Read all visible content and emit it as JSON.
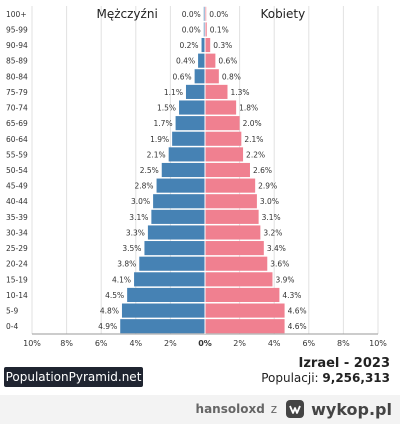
{
  "chart_data": {
    "type": "bar",
    "orientation": "horizontal-population-pyramid",
    "categories": [
      "100+",
      "95-99",
      "90-94",
      "85-89",
      "80-84",
      "75-79",
      "70-74",
      "65-69",
      "60-64",
      "55-59",
      "50-54",
      "45-49",
      "40-44",
      "35-39",
      "30-34",
      "25-29",
      "20-24",
      "15-19",
      "10-14",
      "5-9",
      "0-4"
    ],
    "series": [
      {
        "name": "Mężczyźni",
        "side": "left",
        "color": "#4682b4",
        "values": [
          0.0,
          0.0,
          0.2,
          0.4,
          0.6,
          1.1,
          1.5,
          1.7,
          1.9,
          2.1,
          2.5,
          2.8,
          3.0,
          3.1,
          3.3,
          3.5,
          3.8,
          4.1,
          4.5,
          4.8,
          4.9
        ],
        "labels": [
          "0.0%",
          "0.0%",
          "0.2%",
          "0.4%",
          "0.6%",
          "1.1%",
          "1.5%",
          "1.7%",
          "1.9%",
          "2.1%",
          "2.5%",
          "2.8%",
          "3.0%",
          "3.1%",
          "3.3%",
          "3.5%",
          "3.8%",
          "4.1%",
          "4.5%",
          "4.8%",
          "4.9%"
        ]
      },
      {
        "name": "Kobiety",
        "side": "right",
        "color": "#f08090",
        "values": [
          0.0,
          0.1,
          0.3,
          0.6,
          0.8,
          1.3,
          1.8,
          2.0,
          2.1,
          2.2,
          2.6,
          2.9,
          3.0,
          3.1,
          3.2,
          3.4,
          3.6,
          3.9,
          4.3,
          4.6,
          4.6
        ],
        "labels": [
          "0.0%",
          "0.1%",
          "0.3%",
          "0.6%",
          "0.8%",
          "1.3%",
          "1.8%",
          "2.0%",
          "2.1%",
          "2.2%",
          "2.6%",
          "2.9%",
          "3.0%",
          "3.1%",
          "3.2%",
          "3.4%",
          "3.6%",
          "3.9%",
          "4.3%",
          "4.6%",
          "4.6%"
        ]
      }
    ],
    "xlim": [
      -10,
      10
    ],
    "xticks": [
      "10%",
      "8%",
      "6%",
      "4%",
      "2%",
      "0%",
      "2%",
      "4%",
      "6%",
      "8%",
      "10%"
    ],
    "grid": true
  },
  "brand": "PopulationPyramid.net",
  "info": {
    "title": "Izrael - 2023",
    "population_label": "Populacji:",
    "population_value": "9,256,313"
  },
  "watermark": {
    "user": "hansoloxd",
    "separator": "z",
    "site": "wykop.pl"
  }
}
